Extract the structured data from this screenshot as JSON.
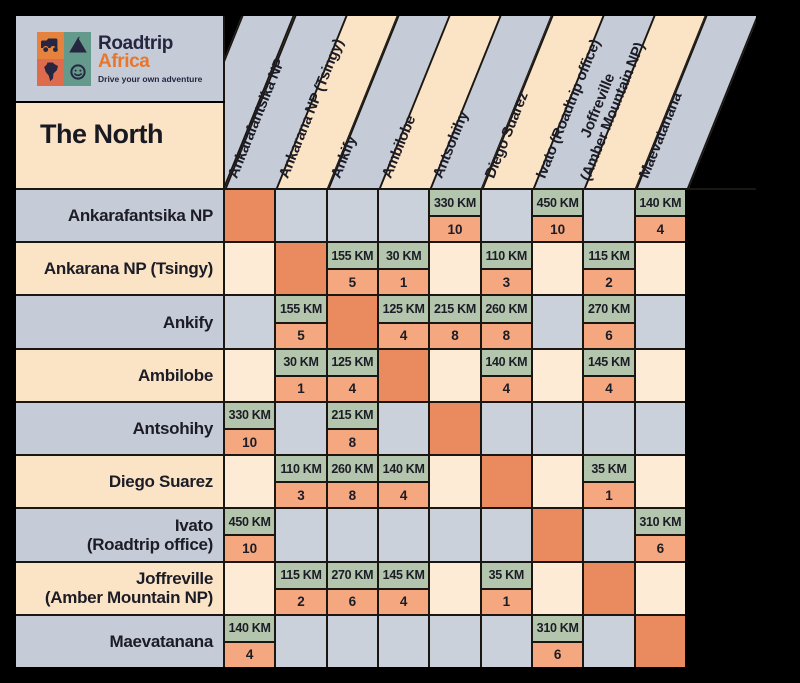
{
  "logo": {
    "brand_top": "Roadtrip",
    "brand_bottom": "Africa",
    "tagline": "Drive your own adventure",
    "icons": [
      "jeep-icon",
      "tent-icon",
      "africa-map-icon",
      "smiley-icon"
    ]
  },
  "title": "The North",
  "colors": {
    "background": "#000000",
    "grid_line": "#1A1612",
    "header_gray": "#C6CCD7",
    "header_peach": "#FBE4C6",
    "cell_gray": "#CBD1DB",
    "cell_cream": "#FDEBD5",
    "distance_green": "#B3C5AD",
    "hours_salmon": "#F5A87F",
    "diagonal_orange": "#EA8B5F",
    "logo_navy": "#262640",
    "logo_orange": "#E8772C",
    "logo_teal": "#639A8C",
    "text_dark": "#1C1C26"
  },
  "chart_data": {
    "type": "table",
    "title": "The North",
    "description": "Distance and driving-time matrix between destinations in northern Madagascar; top value of each pair is distance, bottom value is driving time in hours",
    "units": {
      "distance": "KM",
      "time": "hours"
    },
    "column_headers": [
      "Ankarafantsika NP",
      "Ankarana NP (Tsingy)",
      "Ankify",
      "Ambilobe",
      "Antsohihy",
      "Diego Suarez",
      "Ivato (Roadtrip office)",
      "Joffreville\n(Amber Mountain NP)",
      "Maevatanana"
    ],
    "rows": [
      {
        "label": "Ankarafantsika NP",
        "cells": [
          "self",
          null,
          null,
          null,
          {
            "km": 330,
            "h": 10
          },
          null,
          {
            "km": 450,
            "h": 10
          },
          null,
          {
            "km": 140,
            "h": 4
          }
        ]
      },
      {
        "label": "Ankarana NP (Tsingy)",
        "cells": [
          null,
          "self",
          {
            "km": 155,
            "h": 5
          },
          {
            "km": 30,
            "h": 1
          },
          null,
          {
            "km": 110,
            "h": 3
          },
          null,
          {
            "km": 115,
            "h": 2
          },
          null
        ]
      },
      {
        "label": "Ankify",
        "cells": [
          null,
          {
            "km": 155,
            "h": 5
          },
          "self",
          {
            "km": 125,
            "h": 4
          },
          {
            "km": 215,
            "h": 8
          },
          {
            "km": 260,
            "h": 8
          },
          null,
          {
            "km": 270,
            "h": 6
          },
          null
        ]
      },
      {
        "label": "Ambilobe",
        "cells": [
          null,
          {
            "km": 30,
            "h": 1
          },
          {
            "km": 125,
            "h": 4
          },
          "self",
          null,
          {
            "km": 140,
            "h": 4
          },
          null,
          {
            "km": 145,
            "h": 4
          },
          null
        ]
      },
      {
        "label": "Antsohihy",
        "cells": [
          {
            "km": 330,
            "h": 10
          },
          null,
          {
            "km": 215,
            "h": 8
          },
          null,
          "self",
          null,
          null,
          null,
          null
        ]
      },
      {
        "label": "Diego Suarez",
        "cells": [
          null,
          {
            "km": 110,
            "h": 3
          },
          {
            "km": 260,
            "h": 8
          },
          {
            "km": 140,
            "h": 4
          },
          null,
          "self",
          null,
          {
            "km": 35,
            "h": 1
          },
          null
        ]
      },
      {
        "label": "Ivato\n(Roadtrip office)",
        "cells": [
          {
            "km": 450,
            "h": 10
          },
          null,
          null,
          null,
          null,
          null,
          "self",
          null,
          {
            "km": 310,
            "h": 6
          }
        ]
      },
      {
        "label": "Joffreville\n(Amber Mountain NP)",
        "cells": [
          null,
          {
            "km": 115,
            "h": 2
          },
          {
            "km": 270,
            "h": 6
          },
          {
            "km": 145,
            "h": 4
          },
          null,
          {
            "km": 35,
            "h": 1
          },
          null,
          "self",
          null
        ]
      },
      {
        "label": "Maevatanana",
        "cells": [
          {
            "km": 140,
            "h": 4
          },
          null,
          null,
          null,
          null,
          null,
          {
            "km": 310,
            "h": 6
          },
          null,
          "self"
        ]
      }
    ]
  }
}
